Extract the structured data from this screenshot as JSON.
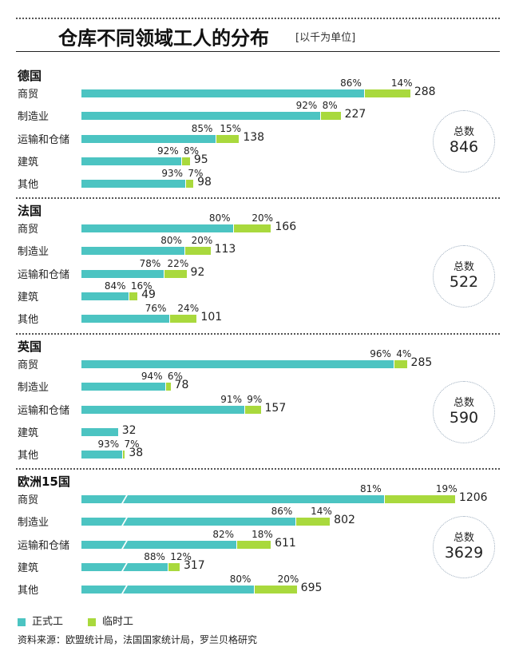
{
  "chart_data": {
    "type": "bar",
    "stacked": true,
    "orientation": "horizontal",
    "title": "仓库不同领域工人的分布",
    "subtitle": "[以千为单位]",
    "legend": {
      "placement": "bottom-left",
      "entries": [
        "正式工",
        "临时工"
      ]
    },
    "colors": {
      "permanent": "#4cc4c2",
      "temporary": "#a9d93d"
    },
    "total_label": "总数",
    "groups": [
      {
        "name": "德国",
        "total": "846",
        "rows": [
          {
            "category": "商贸",
            "value": 288,
            "perm_pct": "86%",
            "temp_pct": "14%"
          },
          {
            "category": "制造业",
            "value": 227,
            "perm_pct": "92%",
            "temp_pct": "8%"
          },
          {
            "category": "运输和仓储",
            "value": 138,
            "perm_pct": "85%",
            "temp_pct": "15%"
          },
          {
            "category": "建筑",
            "value": 95,
            "perm_pct": "92%",
            "temp_pct": "8%"
          },
          {
            "category": "其他",
            "value": 98,
            "perm_pct": "93%",
            "temp_pct": "7%"
          }
        ]
      },
      {
        "name": "法国",
        "total": "522",
        "rows": [
          {
            "category": "商贸",
            "value": 166,
            "perm_pct": "80%",
            "temp_pct": "20%"
          },
          {
            "category": "制造业",
            "value": 113,
            "perm_pct": "80%",
            "temp_pct": "20%"
          },
          {
            "category": "运输和仓储",
            "value": 92,
            "perm_pct": "78%",
            "temp_pct": "22%"
          },
          {
            "category": "建筑",
            "value": 49,
            "perm_pct": "84%",
            "temp_pct": "16%"
          },
          {
            "category": "其他",
            "value": 101,
            "perm_pct": "76%",
            "temp_pct": "24%"
          }
        ]
      },
      {
        "name": "英国",
        "total": "590",
        "rows": [
          {
            "category": "商贸",
            "value": 285,
            "perm_pct": "96%",
            "temp_pct": "4%"
          },
          {
            "category": "制造业",
            "value": 78,
            "perm_pct": "94%",
            "temp_pct": "6%"
          },
          {
            "category": "运输和仓储",
            "value": 157,
            "perm_pct": "91%",
            "temp_pct": "9%"
          },
          {
            "category": "建筑",
            "value": 32,
            "perm_pct": "",
            "temp_pct": ""
          },
          {
            "category": "其他",
            "value": 38,
            "perm_pct": "93%",
            "temp_pct": "7%"
          }
        ]
      },
      {
        "name": "欧洲15国",
        "total": "3629",
        "axis_break": true,
        "rows": [
          {
            "category": "商贸",
            "value": 1206,
            "perm_pct": "81%",
            "temp_pct": "19%"
          },
          {
            "category": "制造业",
            "value": 802,
            "perm_pct": "86%",
            "temp_pct": "14%"
          },
          {
            "category": "运输和仓储",
            "value": 611,
            "perm_pct": "82%",
            "temp_pct": "18%"
          },
          {
            "category": "建筑",
            "value": 317,
            "perm_pct": "88%",
            "temp_pct": "12%"
          },
          {
            "category": "其他",
            "value": 695,
            "perm_pct": "80%",
            "temp_pct": "20%"
          }
        ]
      }
    ],
    "source": "资料来源：欧盟统计局，法国国家统计局，罗兰贝格研究"
  }
}
